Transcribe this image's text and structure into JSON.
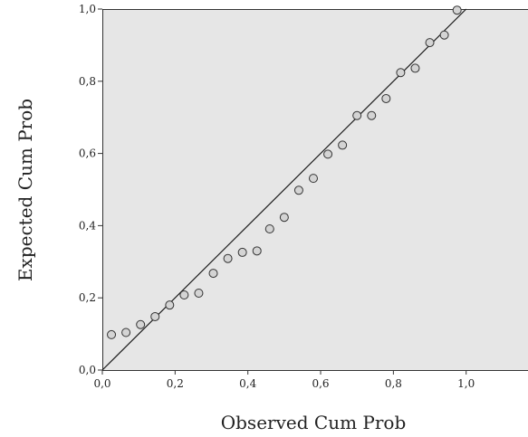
{
  "chart_data": {
    "type": "scatter",
    "xlabel": "Observed Cum Prob",
    "ylabel": "Expected Cum Prob",
    "xlim": [
      0,
      1.17
    ],
    "ylim": [
      0,
      1.0
    ],
    "x_ticks": [
      "0,0",
      "0,2",
      "0,4",
      "0,6",
      "0,8",
      "1,0"
    ],
    "y_ticks": [
      "0,0",
      "0,2",
      "0,4",
      "0,6",
      "0,8",
      "1,0"
    ],
    "reference_line": [
      [
        0,
        0
      ],
      [
        1,
        1
      ]
    ],
    "points": [
      {
        "x": 0.025,
        "y": 0.098
      },
      {
        "x": 0.065,
        "y": 0.104
      },
      {
        "x": 0.105,
        "y": 0.126
      },
      {
        "x": 0.145,
        "y": 0.148
      },
      {
        "x": 0.185,
        "y": 0.18
      },
      {
        "x": 0.225,
        "y": 0.208
      },
      {
        "x": 0.265,
        "y": 0.213
      },
      {
        "x": 0.305,
        "y": 0.268
      },
      {
        "x": 0.345,
        "y": 0.309
      },
      {
        "x": 0.385,
        "y": 0.326
      },
      {
        "x": 0.425,
        "y": 0.33
      },
      {
        "x": 0.46,
        "y": 0.391
      },
      {
        "x": 0.5,
        "y": 0.423
      },
      {
        "x": 0.54,
        "y": 0.498
      },
      {
        "x": 0.58,
        "y": 0.531
      },
      {
        "x": 0.62,
        "y": 0.598
      },
      {
        "x": 0.66,
        "y": 0.623
      },
      {
        "x": 0.7,
        "y": 0.705
      },
      {
        "x": 0.74,
        "y": 0.705
      },
      {
        "x": 0.78,
        "y": 0.752
      },
      {
        "x": 0.82,
        "y": 0.824
      },
      {
        "x": 0.86,
        "y": 0.836
      },
      {
        "x": 0.9,
        "y": 0.907
      },
      {
        "x": 0.94,
        "y": 0.928
      },
      {
        "x": 0.975,
        "y": 0.997
      }
    ],
    "grid": false,
    "colors": {
      "plot_background": "#e6e6e6",
      "marker_fill": "#d4d4d4",
      "marker_stroke": "#333333",
      "line": "#1a1a1a"
    }
  }
}
